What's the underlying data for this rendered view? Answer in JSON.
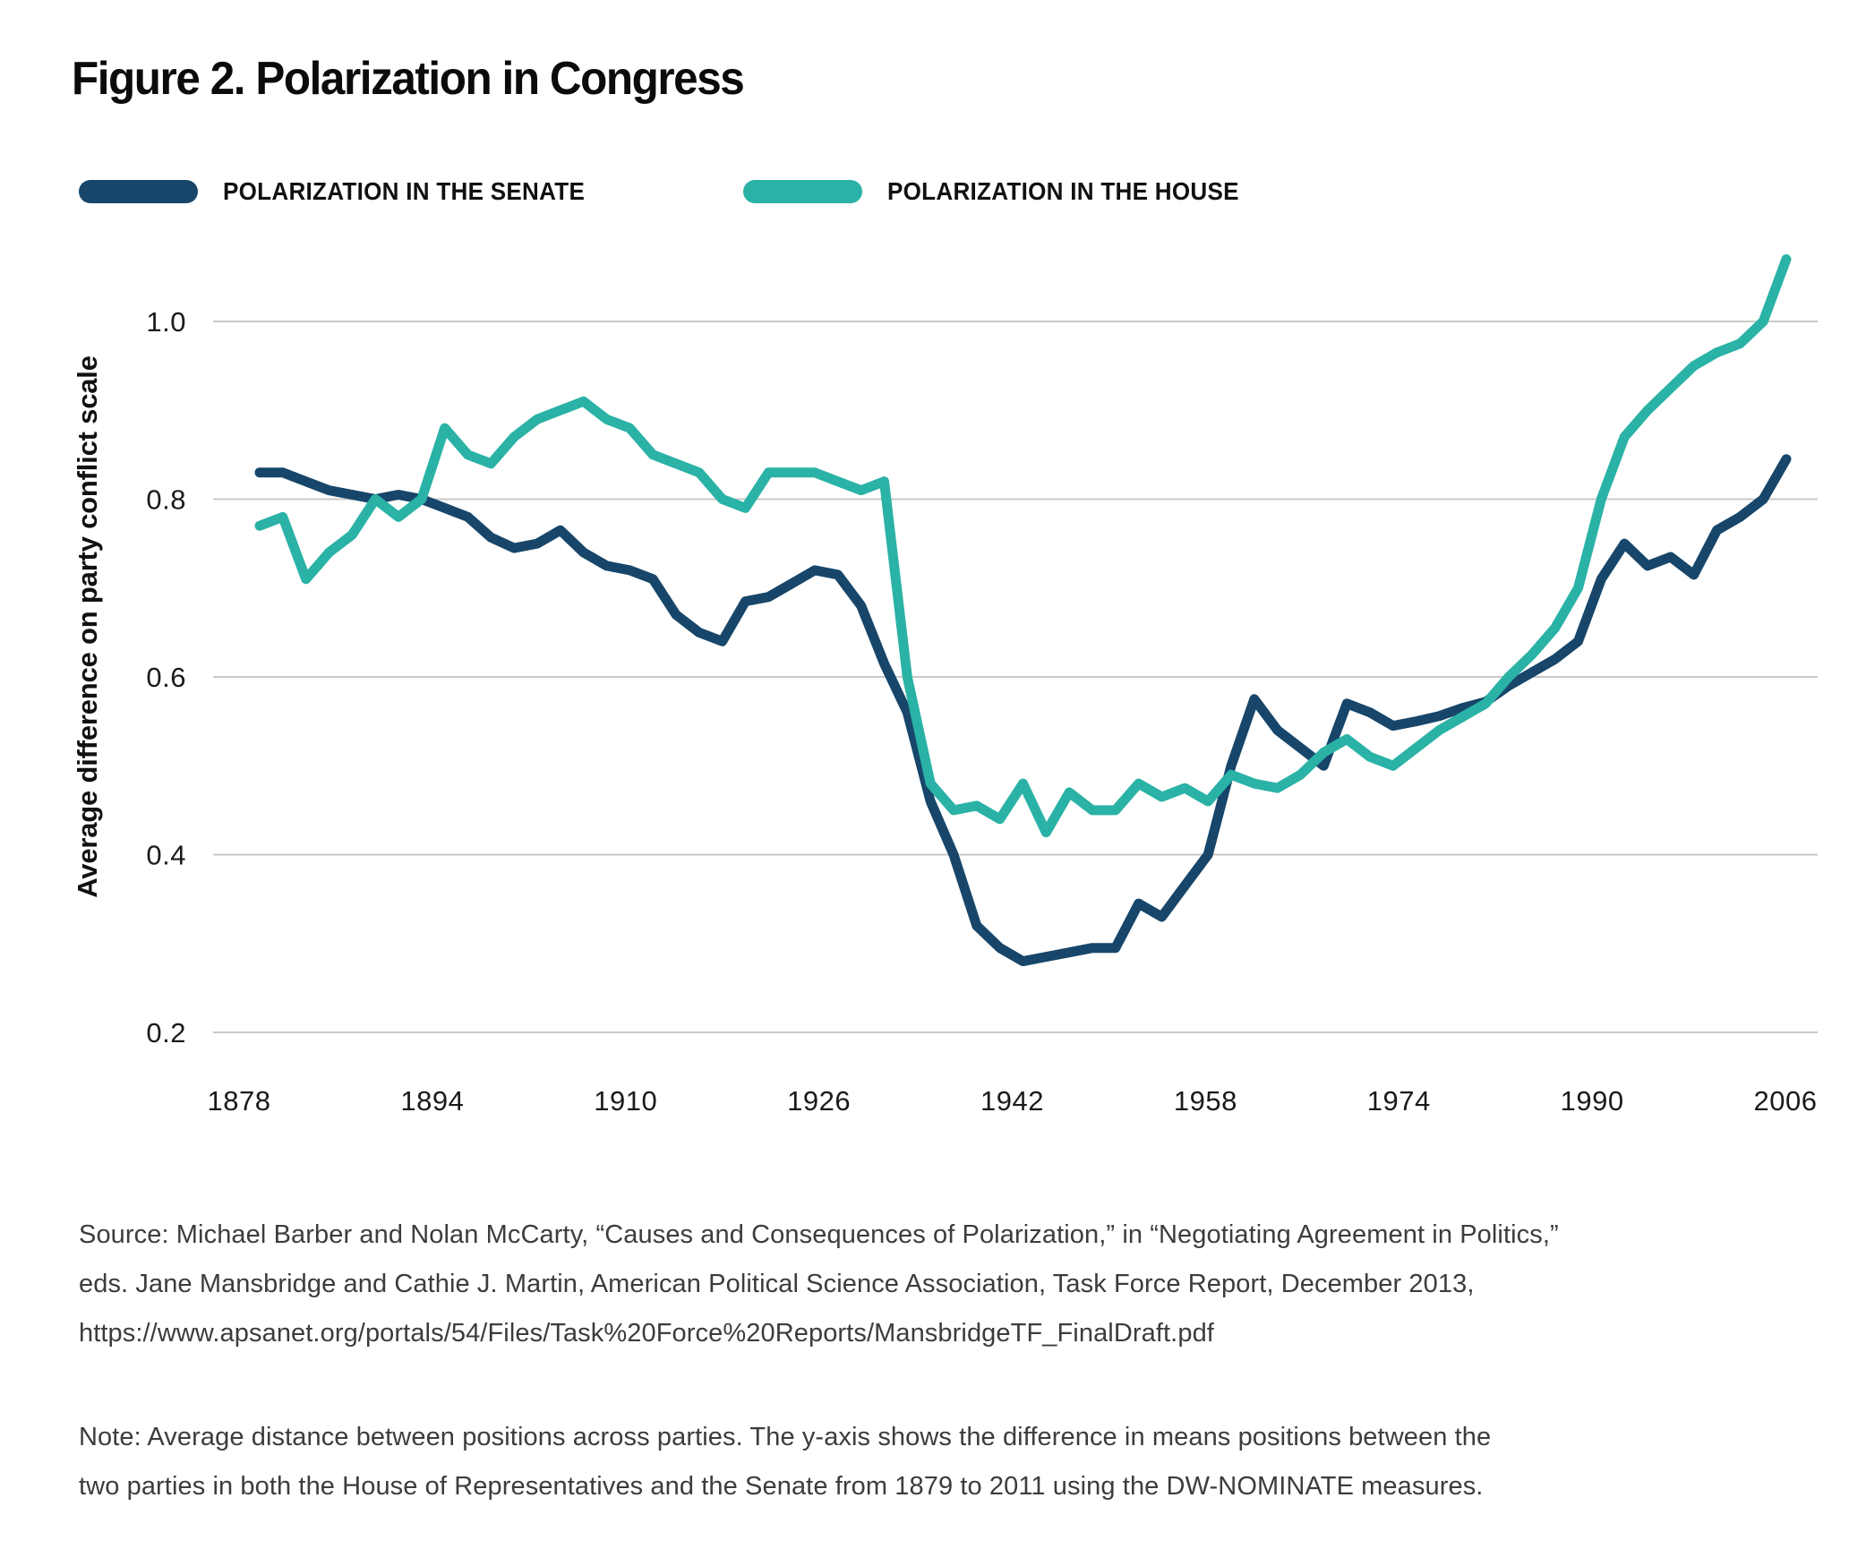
{
  "title": "Figure 2. Polarization in Congress",
  "legend": {
    "senate_label": "POLARIZATION IN THE SENATE",
    "house_label": "POLARIZATION IN THE HOUSE",
    "senate_color": "#17466a",
    "house_color": "#2ab2a6"
  },
  "source": {
    "line1": "Source: Michael Barber and Nolan McCarty, “Causes and Consequences of Polarization,” in “Negotiating Agreement in Politics,”",
    "line2": "eds. Jane Mansbridge and Cathie J. Martin, American Political Science Association, Task Force Report, December 2013,",
    "line3": "https://www.apsanet.org/portals/54/Files/Task%20Force%20Reports/MansbridgeTF_FinalDraft.pdf"
  },
  "note": {
    "line1": "Note: Average distance between positions across parties. The y-axis shows the difference in means positions between the",
    "line2": "two parties in both the House of Representatives and the Senate from 1879 to 2011 using the DW-NOMINATE measures."
  },
  "chart_data": {
    "type": "line",
    "title": "Figure 2. Polarization in Congress",
    "xlabel": "",
    "ylabel": "Average difference on party conflict scale",
    "ylim": [
      0.2,
      1.1
    ],
    "grid": "horizontal",
    "legend_position": "top-left",
    "yticks": [
      1.0,
      0.8,
      0.6,
      0.4,
      0.2
    ],
    "xticks": [
      1878,
      1894,
      1910,
      1926,
      1942,
      1958,
      1974,
      1990,
      2006
    ],
    "x_years": [
      1879,
      1881,
      1883,
      1885,
      1887,
      1889,
      1891,
      1893,
      1895,
      1897,
      1899,
      1901,
      1903,
      1905,
      1907,
      1909,
      1911,
      1913,
      1915,
      1917,
      1919,
      1921,
      1923,
      1925,
      1927,
      1929,
      1931,
      1933,
      1935,
      1937,
      1939,
      1941,
      1943,
      1945,
      1947,
      1949,
      1951,
      1953,
      1955,
      1957,
      1959,
      1961,
      1963,
      1965,
      1967,
      1969,
      1971,
      1973,
      1975,
      1977,
      1979,
      1981,
      1983,
      1985,
      1987,
      1989,
      1991,
      1993,
      1995,
      1997,
      1999,
      2001,
      2003,
      2005,
      2007,
      2009,
      2011
    ],
    "series": [
      {
        "name": "Polarization in the Senate",
        "key": "senate",
        "color": "#17466a",
        "values": [
          0.83,
          0.83,
          0.82,
          0.81,
          0.805,
          0.8,
          0.805,
          0.8,
          0.79,
          0.78,
          0.757,
          0.745,
          0.75,
          0.765,
          0.74,
          0.725,
          0.72,
          0.71,
          0.67,
          0.65,
          0.64,
          0.685,
          0.69,
          0.705,
          0.72,
          0.715,
          0.68,
          0.615,
          0.56,
          0.46,
          0.4,
          0.32,
          0.295,
          0.28,
          0.285,
          0.29,
          0.295,
          0.295,
          0.345,
          0.33,
          0.365,
          0.4,
          0.5,
          0.575,
          0.54,
          0.52,
          0.5,
          0.57,
          0.56,
          0.545,
          0.55,
          0.556,
          0.565,
          0.572,
          0.59,
          0.605,
          0.62,
          0.64,
          0.71,
          0.75,
          0.725,
          0.735,
          0.715,
          0.765,
          0.78,
          0.8,
          0.845
        ]
      },
      {
        "name": "Polarization in the House",
        "key": "house",
        "color": "#2ab2a6",
        "values": [
          0.77,
          0.78,
          0.71,
          0.74,
          0.76,
          0.8,
          0.78,
          0.8,
          0.88,
          0.85,
          0.84,
          0.87,
          0.89,
          0.9,
          0.91,
          0.89,
          0.88,
          0.85,
          0.84,
          0.83,
          0.8,
          0.79,
          0.83,
          0.83,
          0.83,
          0.82,
          0.81,
          0.82,
          0.6,
          0.48,
          0.45,
          0.455,
          0.44,
          0.48,
          0.425,
          0.47,
          0.45,
          0.45,
          0.48,
          0.465,
          0.475,
          0.46,
          0.49,
          0.48,
          0.475,
          0.49,
          0.515,
          0.53,
          0.51,
          0.5,
          0.52,
          0.54,
          0.555,
          0.57,
          0.6,
          0.625,
          0.655,
          0.7,
          0.8,
          0.87,
          0.9,
          0.925,
          0.95,
          0.965,
          0.975,
          1.0,
          1.07
        ]
      }
    ]
  }
}
